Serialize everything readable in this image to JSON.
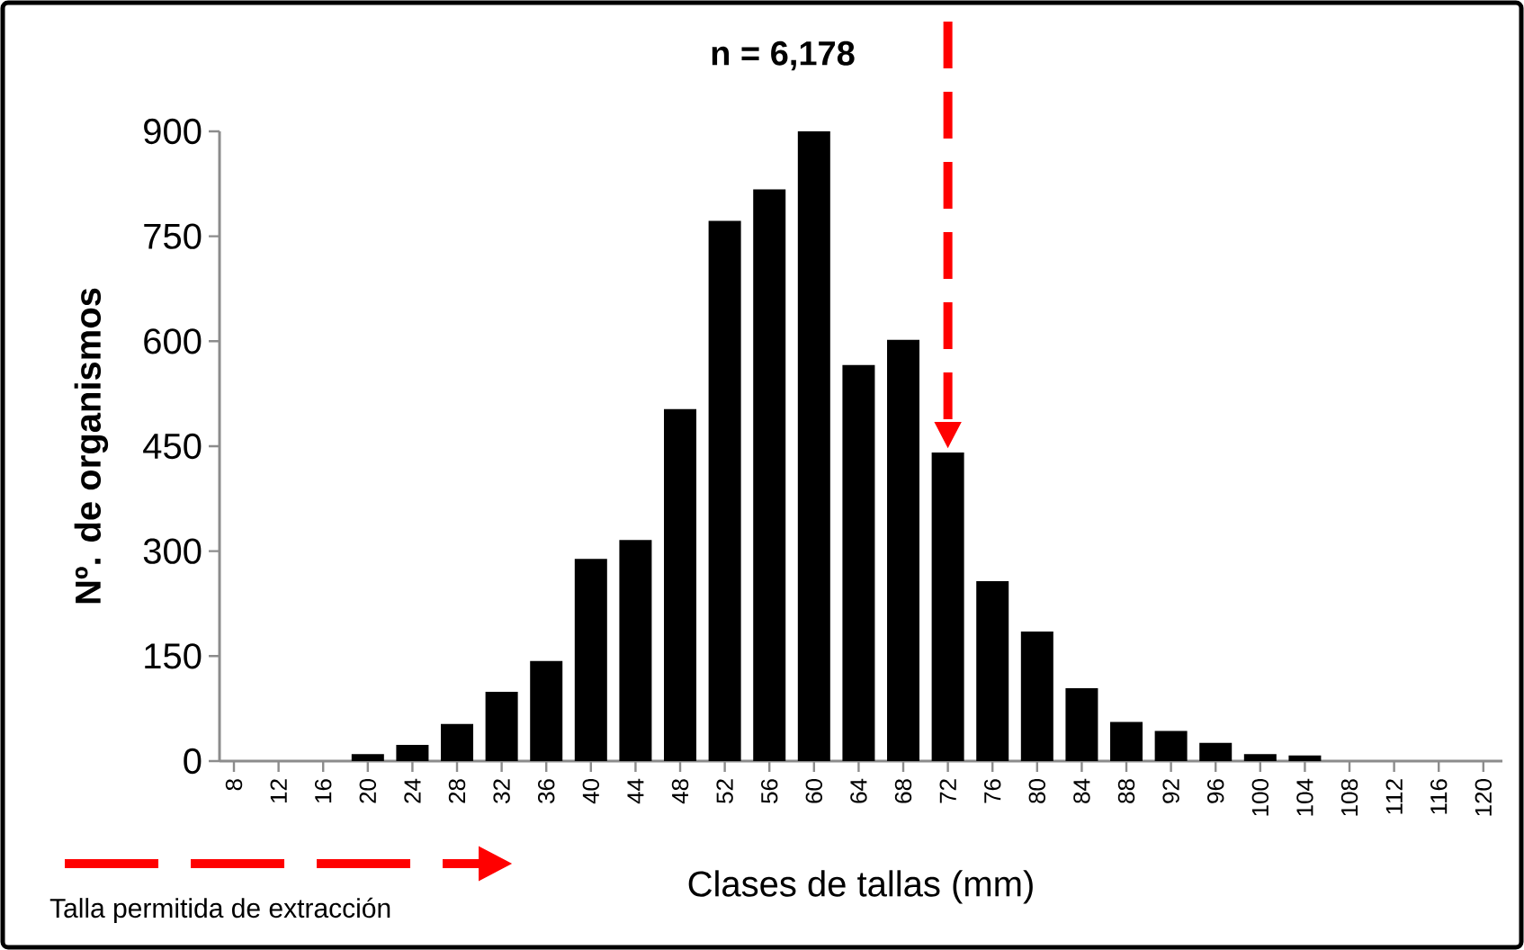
{
  "chart_data": {
    "type": "bar",
    "categories": [
      "8",
      "12",
      "16",
      "20",
      "24",
      "28",
      "32",
      "36",
      "40",
      "44",
      "48",
      "52",
      "56",
      "60",
      "64",
      "68",
      "72",
      "76",
      "80",
      "84",
      "88",
      "92",
      "96",
      "100",
      "104",
      "108",
      "112",
      "116",
      "120"
    ],
    "values": [
      0,
      0,
      0,
      10,
      23,
      53,
      99,
      143,
      289,
      316,
      503,
      772,
      817,
      900,
      566,
      602,
      441,
      257,
      185,
      104,
      56,
      43,
      26,
      10,
      8,
      0,
      0,
      0,
      0
    ],
    "color": "#000000",
    "ylim": [
      0,
      900
    ],
    "yticks": [
      0,
      150,
      300,
      450,
      600,
      750,
      900
    ],
    "xlabel": "Clases de tallas (mm)",
    "ylabel": "Nº. de organismos",
    "annotations": [
      "n = 6,178",
      "Talla permitida de extracción"
    ],
    "ref_lines": [
      {
        "axis": "x",
        "value": "72",
        "color": "#ff0000",
        "line_style": "dashed"
      }
    ]
  }
}
